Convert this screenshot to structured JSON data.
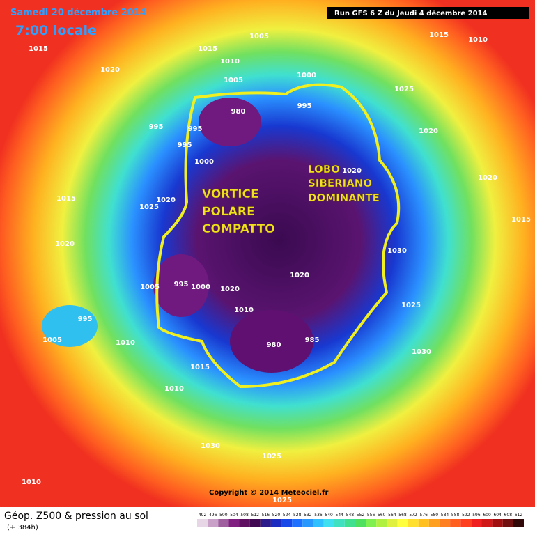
{
  "header": {
    "date": "Samedi 20 décembre 2014",
    "time": "7:00 locale",
    "run": "Run GFS 6 Z du Jeudi 4 décembre 2014"
  },
  "annotations": {
    "vortex": [
      "VORTICE",
      "POLARE",
      "COMPATTO"
    ],
    "lobe": [
      "LOBO",
      "SIBERIANO",
      "DOMINANTE"
    ]
  },
  "isobar_labels": [
    1015,
    1015,
    1005,
    1010,
    1005,
    1000,
    1015,
    1010,
    1025,
    1020,
    1020,
    1015,
    1020,
    995,
    995,
    995,
    1000,
    1020,
    1020,
    1025,
    1015,
    1020,
    1030,
    1020,
    995,
    1000,
    1020,
    1010,
    1025,
    1005,
    995,
    1005,
    1010,
    1030,
    980,
    985,
    1015,
    1010,
    1030,
    1025,
    1010,
    1025,
    980,
    995
  ],
  "footer": {
    "copyright": "Copyright © 2014 Meteociel.fr",
    "title": "Géop. Z500 & pression au sol",
    "lead": "(+ 384h)"
  },
  "scale": {
    "levels": [
      492,
      496,
      500,
      504,
      508,
      512,
      516,
      520,
      524,
      528,
      532,
      536,
      540,
      544,
      548,
      552,
      556,
      560,
      564,
      568,
      572,
      576,
      580,
      584,
      588,
      592,
      596,
      600,
      604,
      608,
      612
    ],
    "colors": [
      "#e6d6e6",
      "#c8a0c8",
      "#a060a0",
      "#802080",
      "#601060",
      "#400850",
      "#2a1a8a",
      "#1c2cc0",
      "#1848e8",
      "#2070ff",
      "#2898ff",
      "#30c0ff",
      "#40e0f0",
      "#40e0c0",
      "#40e090",
      "#50e060",
      "#80f050",
      "#b0f040",
      "#e0f040",
      "#ffff40",
      "#ffe030",
      "#ffc020",
      "#ffa020",
      "#ff8020",
      "#ff6020",
      "#ff4020",
      "#f02020",
      "#d01818",
      "#a01010",
      "#701010",
      "#300808"
    ]
  }
}
